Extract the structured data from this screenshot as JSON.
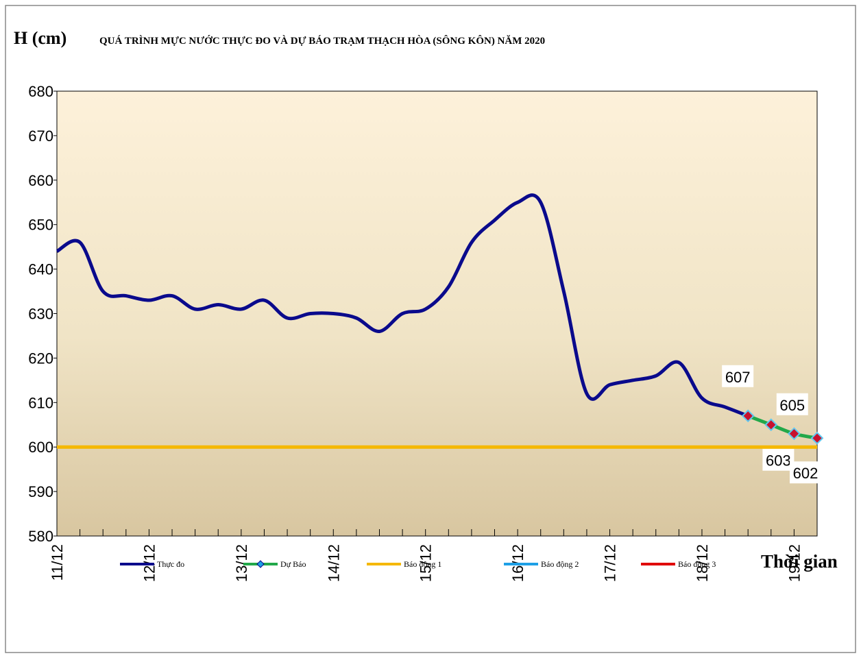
{
  "chart_data": {
    "type": "line",
    "title": "QUÁ TRÌNH MỰC NƯỚC THỰC ĐO VÀ DỰ BÁO TRẠM THẠCH HÒA (SÔNG KÔN) NĂM  2020",
    "y_label": "H (cm)",
    "x_label": "Thời gian",
    "categories": [
      "11/12",
      null,
      null,
      null,
      "12/12",
      null,
      null,
      null,
      "13/12",
      null,
      null,
      null,
      "14/12",
      null,
      null,
      null,
      "15/12",
      null,
      null,
      null,
      "16/12",
      null,
      null,
      null,
      "17/12",
      null,
      null,
      null,
      "18/12",
      null,
      null,
      null,
      "19/12",
      null
    ],
    "ylim": [
      580,
      680
    ],
    "yticks": [
      580,
      590,
      600,
      610,
      620,
      630,
      640,
      650,
      660,
      670,
      680
    ],
    "series": [
      {
        "name": "Thực đo",
        "color": "#0a0a8c",
        "values": [
          644,
          646,
          635,
          634,
          633,
          634,
          631,
          632,
          631,
          633,
          629,
          630,
          630,
          629,
          626,
          630,
          631,
          636,
          646,
          651,
          655,
          655,
          635,
          612,
          614,
          615,
          616,
          619,
          611,
          609,
          607,
          null,
          null,
          null
        ]
      },
      {
        "name": "Dự Báo",
        "color": "#22a84a",
        "marker_color": "#c8102e",
        "values": [
          null,
          null,
          null,
          null,
          null,
          null,
          null,
          null,
          null,
          null,
          null,
          null,
          null,
          null,
          null,
          null,
          null,
          null,
          null,
          null,
          null,
          null,
          null,
          null,
          null,
          null,
          null,
          null,
          null,
          null,
          607,
          605,
          603,
          602
        ],
        "data_labels": true
      },
      {
        "name": "Báo động 1",
        "color": "#f5b800",
        "values": [
          600,
          600,
          600,
          600,
          600,
          600,
          600,
          600,
          600,
          600,
          600,
          600,
          600,
          600,
          600,
          600,
          600,
          600,
          600,
          600,
          600,
          600,
          600,
          600,
          600,
          600,
          600,
          600,
          600,
          600,
          600,
          600,
          600,
          600
        ]
      },
      {
        "name": "Báo động 2",
        "color": "#1ea0e6"
      },
      {
        "name": "Báo động 3",
        "color": "#e00000"
      }
    ]
  }
}
